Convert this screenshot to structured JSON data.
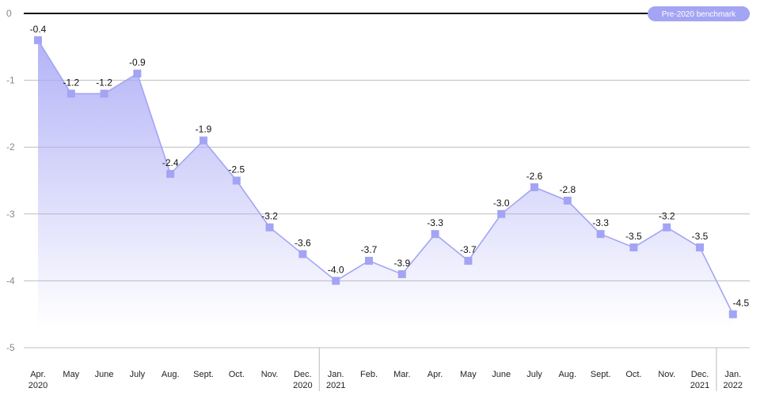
{
  "chart_data": {
    "type": "area",
    "title": "",
    "xlabel": "",
    "ylabel": "",
    "ylim": [
      -5,
      0
    ],
    "y_ticks": [
      "0",
      "-1",
      "-2",
      "-3",
      "-4",
      "-5"
    ],
    "y_tick_values": [
      0,
      -1,
      -2,
      -3,
      -4,
      -5
    ],
    "grid": true,
    "benchmark_label": "Pre-2020 benchmark",
    "categories": [
      [
        "Apr.",
        "2020"
      ],
      [
        "May",
        ""
      ],
      [
        "June",
        ""
      ],
      [
        "July",
        ""
      ],
      [
        "Aug.",
        ""
      ],
      [
        "Sept.",
        ""
      ],
      [
        "Oct.",
        ""
      ],
      [
        "Nov.",
        ""
      ],
      [
        "Dec.",
        "2020"
      ],
      [
        "Jan.",
        "2021"
      ],
      [
        "Feb.",
        ""
      ],
      [
        "Mar.",
        ""
      ],
      [
        "Apr.",
        ""
      ],
      [
        "May",
        ""
      ],
      [
        "June",
        ""
      ],
      [
        "July",
        ""
      ],
      [
        "Aug.",
        ""
      ],
      [
        "Sept.",
        ""
      ],
      [
        "Oct.",
        ""
      ],
      [
        "Nov.",
        ""
      ],
      [
        "Dec.",
        "2021"
      ],
      [
        "Jan.",
        "2022"
      ]
    ],
    "values": [
      -0.4,
      -1.2,
      -1.2,
      -0.9,
      -2.4,
      -1.9,
      -2.5,
      -3.2,
      -3.6,
      -4.0,
      -3.7,
      -3.9,
      -3.3,
      -3.7,
      -3.0,
      -2.6,
      -2.8,
      -3.3,
      -3.5,
      -3.2,
      -3.5,
      -4.5
    ],
    "value_labels": [
      "-0.4",
      "-1.2",
      "-1.2",
      "-0.9",
      "-2.4",
      "-1.9",
      "-2.5",
      "-3.2",
      "-3.6",
      "-4.0",
      "-3.7",
      "-3.9",
      "-3.3",
      "-3.7",
      "-3.0",
      "-2.6",
      "-2.8",
      "-3.3",
      "-3.5",
      "-3.2",
      "-3.5",
      "-4.5"
    ],
    "colors": {
      "line": "#a4a4f4",
      "marker": "#a4a4f4",
      "fill_top": "#a8a8f6",
      "benchmark_line": "#111111",
      "benchmark_badge": "#a4a4f4",
      "grid": "#bdbdbd"
    }
  }
}
